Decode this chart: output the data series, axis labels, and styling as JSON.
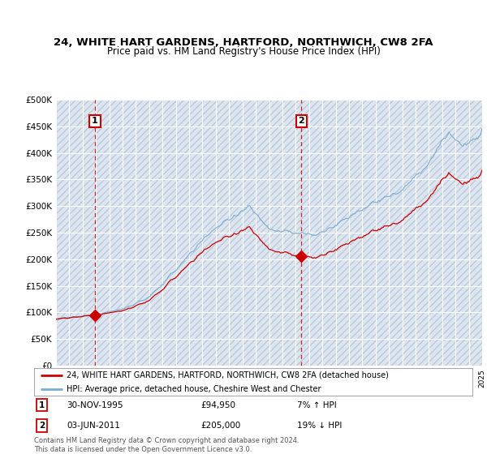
{
  "title_line1": "24, WHITE HART GARDENS, HARTFORD, NORTHWICH, CW8 2FA",
  "title_line2": "Price paid vs. HM Land Registry's House Price Index (HPI)",
  "ylim": [
    0,
    500000
  ],
  "yticks": [
    0,
    50000,
    100000,
    150000,
    200000,
    250000,
    300000,
    350000,
    400000,
    450000,
    500000
  ],
  "ytick_labels": [
    "£0",
    "£50K",
    "£100K",
    "£150K",
    "£200K",
    "£250K",
    "£300K",
    "£350K",
    "£400K",
    "£450K",
    "£500K"
  ],
  "background_color": "#ffffff",
  "plot_bg_color": "#dce6f1",
  "hatch_color": "#c0c8d8",
  "grid_color": "#ffffff",
  "red_line_color": "#cc0000",
  "blue_line_color": "#7aadd4",
  "sale1_x": 1995.917,
  "sale1_y": 94950,
  "sale2_x": 2011.417,
  "sale2_y": 205000,
  "legend_label1": "24, WHITE HART GARDENS, HARTFORD, NORTHWICH, CW8 2FA (detached house)",
  "legend_label2": "HPI: Average price, detached house, Cheshire West and Chester",
  "footnote": "Contains HM Land Registry data © Crown copyright and database right 2024.\nThis data is licensed under the Open Government Licence v3.0.",
  "xmin": 1993,
  "xmax": 2025
}
